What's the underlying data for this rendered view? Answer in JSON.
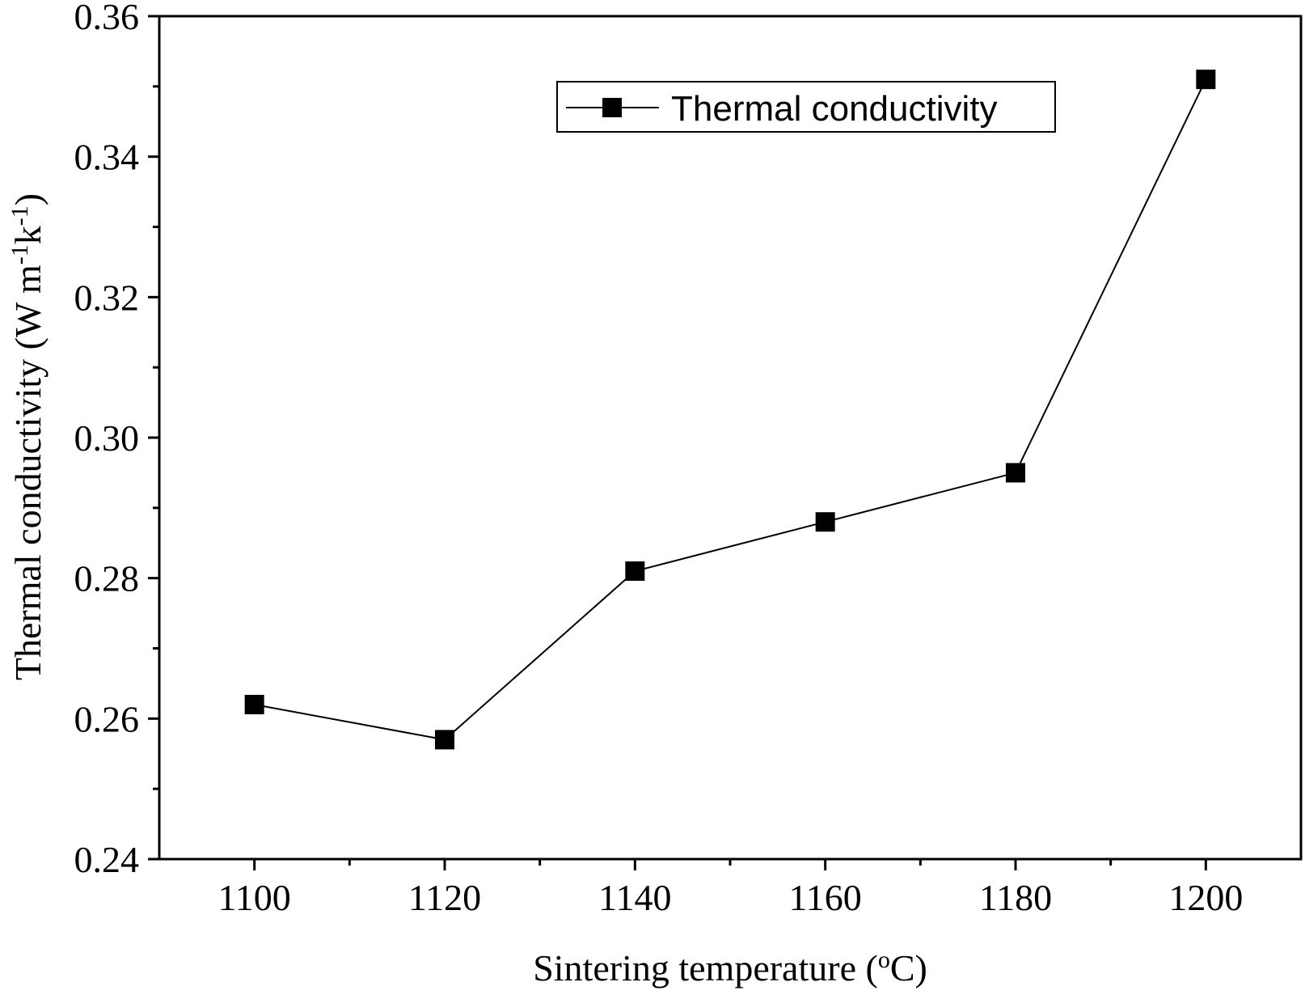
{
  "chart_data": {
    "type": "line",
    "title": "",
    "xlabel": "Sintering temperature (",
    "xlabel_sup": "o",
    "xlabel_end": "C)",
    "ylabel": "Thermal conductivity (W m",
    "ylabel_sup1": "-1",
    "ylabel_mid": "k",
    "ylabel_sup2": "-1",
    "ylabel_end": ")",
    "xlim": [
      1090,
      1210
    ],
    "ylim": [
      0.24,
      0.36
    ],
    "x_ticks": [
      1100,
      1120,
      1140,
      1160,
      1180,
      1200
    ],
    "x_tick_labels": [
      "1100",
      "1120",
      "1140",
      "1160",
      "1180",
      "1200"
    ],
    "x_minor_ticks": [
      1110,
      1130,
      1150,
      1170,
      1190
    ],
    "y_ticks": [
      0.24,
      0.26,
      0.28,
      0.3,
      0.32,
      0.34,
      0.36
    ],
    "y_tick_labels": [
      "0.24",
      "0.26",
      "0.28",
      "0.30",
      "0.32",
      "0.34",
      "0.36"
    ],
    "y_minor_ticks": [
      0.25,
      0.27,
      0.29,
      0.31,
      0.33,
      0.35
    ],
    "grid": false,
    "legend_position": "top-right",
    "series": [
      {
        "name": "Thermal conductivity",
        "marker": "square",
        "color": "#000000",
        "x": [
          1100,
          1120,
          1140,
          1160,
          1180,
          1200
        ],
        "y": [
          0.262,
          0.257,
          0.281,
          0.288,
          0.295,
          0.351
        ]
      }
    ]
  }
}
